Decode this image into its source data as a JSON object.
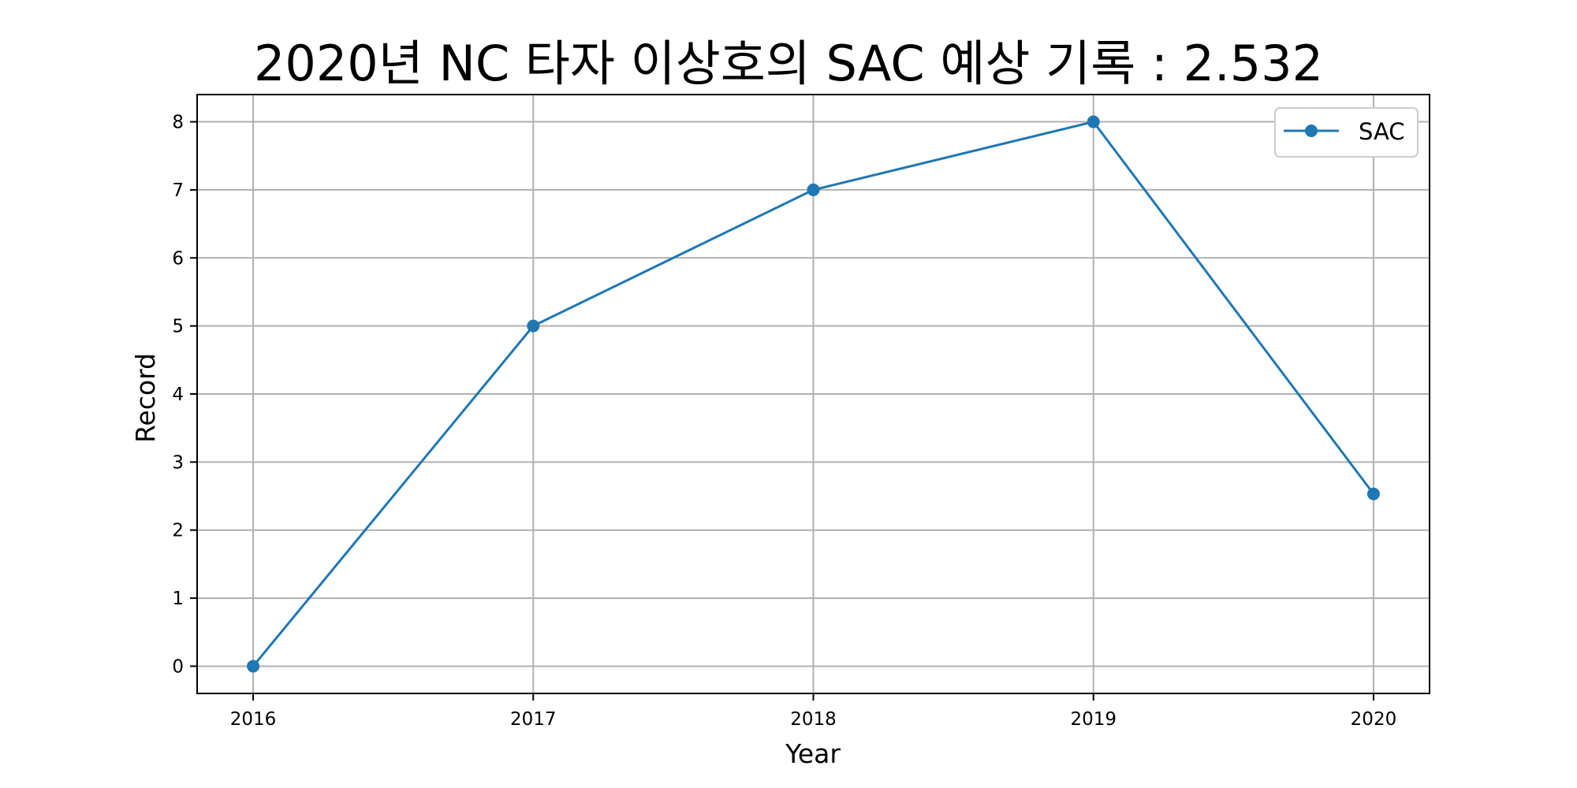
{
  "chart_data": {
    "type": "line",
    "title": "2020년 NC 타자 이상호의 SAC 예상 기록 : 2.532",
    "xlabel": "Year",
    "ylabel": "Record",
    "x": [
      2016,
      2017,
      2018,
      2019,
      2020
    ],
    "x_tick_labels": [
      "2016",
      "2017",
      "2018",
      "2019",
      "2020"
    ],
    "y_tick_labels": [
      "0",
      "1",
      "2",
      "3",
      "4",
      "5",
      "6",
      "7",
      "8"
    ],
    "xlim": [
      2015.8,
      2020.2
    ],
    "ylim": [
      -0.4,
      8.4
    ],
    "grid": true,
    "legend_position": "top-right",
    "series": [
      {
        "name": "SAC",
        "values": [
          0,
          5,
          7,
          8,
          2.532
        ],
        "color": "#1f77b4",
        "marker": "circle"
      }
    ]
  }
}
